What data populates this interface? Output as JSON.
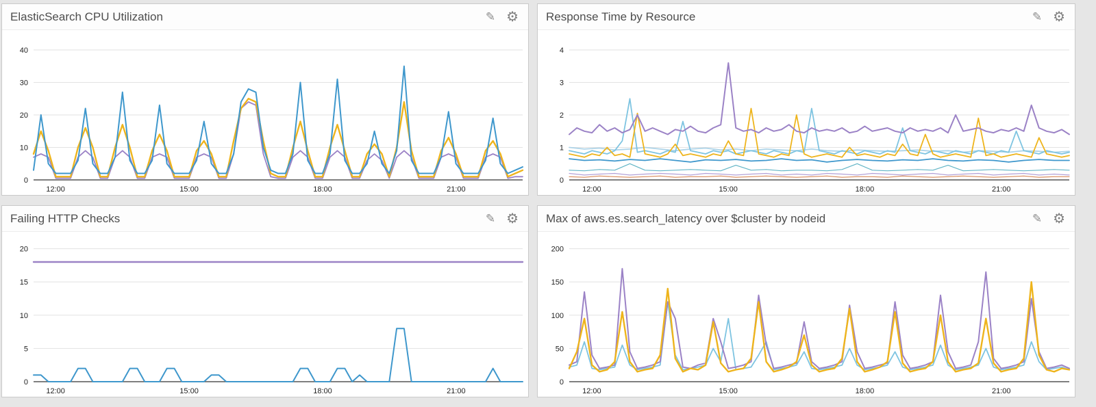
{
  "app": {
    "background": "#e6e6e6",
    "panel_background": "#ffffff",
    "title_color": "#4d4d4d",
    "grid_color": "#e2e2e2",
    "axis_color": "#333333",
    "tick_text_color": "#222222"
  },
  "icons": {
    "edit_glyph": "✎",
    "settings_glyph": "⚙"
  },
  "colors": {
    "blue": "#3e97cc",
    "yellow": "#eeb41c",
    "purple": "#9b82c6",
    "sky": "#7ec4e1",
    "pale_blue": "#aed4e8",
    "orange": "#d98a5a",
    "teal": "#62b5c6",
    "lavender": "#b3a0d6"
  },
  "chart_data": [
    {
      "type": "line",
      "title": "ElasticSearch CPU Utilization",
      "xlabel": "",
      "ylabel": "",
      "x_range": [
        "11:30",
        "22:30"
      ],
      "xticks": [
        {
          "label": "12:00",
          "pos": 0.045
        },
        {
          "label": "15:00",
          "pos": 0.318
        },
        {
          "label": "18:00",
          "pos": 0.591
        },
        {
          "label": "21:00",
          "pos": 0.864
        }
      ],
      "yticks": [
        0,
        10,
        20,
        30,
        40
      ],
      "ylim": [
        0,
        44
      ],
      "grid": "horizontal",
      "legend": "none",
      "series": [
        {
          "name": "cpu-purple",
          "color": "#9b82c6",
          "width": 1.8,
          "values": [
            7,
            8,
            7,
            0.5,
            0.5,
            0.5,
            7,
            9,
            7,
            0.5,
            0.5,
            7,
            9,
            7,
            0.5,
            0.5,
            7,
            8,
            7,
            0.5,
            0.5,
            0.5,
            7,
            8,
            7,
            0.5,
            0.5,
            8,
            22,
            24,
            23,
            8,
            1,
            0.5,
            0.5,
            7,
            9,
            7,
            0.5,
            0.5,
            7,
            9,
            7,
            0.5,
            0.5,
            6,
            8,
            6,
            0.5,
            7,
            9,
            7,
            0.5,
            0.5,
            0.5,
            7,
            8,
            7,
            0.5,
            0.5,
            0.5,
            7,
            8,
            7,
            0.5,
            1,
            1
          ]
        },
        {
          "name": "cpu-yellow",
          "color": "#eeb41c",
          "width": 2.4,
          "values": [
            8,
            15,
            9,
            1,
            1,
            1,
            10,
            16,
            10,
            1,
            1,
            10,
            17,
            10,
            1,
            1,
            9,
            14,
            9,
            1,
            1,
            1,
            9,
            12,
            8,
            1,
            1,
            12,
            22,
            25,
            24,
            12,
            2,
            1,
            1,
            10,
            18,
            9,
            1,
            1,
            10,
            17,
            9,
            1,
            1,
            8,
            11,
            8,
            1,
            10,
            24,
            9,
            1,
            1,
            1,
            9,
            13,
            8,
            1,
            1,
            1,
            9,
            12,
            8,
            1,
            2,
            3
          ]
        },
        {
          "name": "cpu-blue",
          "color": "#3e97cc",
          "width": 2,
          "values": [
            3,
            20,
            5,
            2,
            2,
            2,
            6,
            22,
            5,
            2,
            2,
            7,
            27,
            6,
            2,
            2,
            6,
            23,
            5,
            2,
            2,
            2,
            6,
            18,
            5,
            2,
            2,
            8,
            24,
            28,
            27,
            10,
            3,
            2,
            2,
            8,
            30,
            6,
            2,
            2,
            8,
            31,
            6,
            2,
            2,
            5,
            15,
            5,
            2,
            9,
            35,
            6,
            2,
            2,
            2,
            7,
            21,
            5,
            2,
            2,
            2,
            6,
            19,
            5,
            2,
            3,
            4
          ]
        }
      ]
    },
    {
      "type": "line",
      "title": "Response Time by Resource",
      "xlabel": "",
      "ylabel": "",
      "x_range": [
        "11:30",
        "22:30"
      ],
      "xticks": [
        {
          "label": "12:00",
          "pos": 0.045
        },
        {
          "label": "15:00",
          "pos": 0.318
        },
        {
          "label": "18:00",
          "pos": 0.591
        },
        {
          "label": "21:00",
          "pos": 0.864
        }
      ],
      "yticks": [
        0,
        1,
        2,
        3,
        4
      ],
      "ylim": [
        0,
        4.4
      ],
      "grid": "horizontal",
      "legend": "none",
      "series": [
        {
          "name": "rt-low-orange",
          "color": "#d98a5a",
          "width": 1.2,
          "values": [
            0.1,
            0.08,
            0.12,
            0.1,
            0.08,
            0.1,
            0.12,
            0.08,
            0.1,
            0.1,
            0.12,
            0.08,
            0.1,
            0.12,
            0.1,
            0.08,
            0.1,
            0.12,
            0.08,
            0.1,
            0.1,
            0.08,
            0.12,
            0.1,
            0.08,
            0.1,
            0.12,
            0.1,
            0.08,
            0.1,
            0.12,
            0.08,
            0.1,
            0.1
          ]
        },
        {
          "name": "rt-low-lavender",
          "color": "#b3a0d6",
          "width": 1.2,
          "values": [
            0.2,
            0.15,
            0.18,
            0.2,
            0.15,
            0.18,
            0.2,
            0.18,
            0.15,
            0.2,
            0.18,
            0.15,
            0.18,
            0.2,
            0.15,
            0.18,
            0.15,
            0.2,
            0.18,
            0.15,
            0.2,
            0.18,
            0.15,
            0.18,
            0.2,
            0.15,
            0.18,
            0.2,
            0.15,
            0.18,
            0.2,
            0.15,
            0.18,
            0.15
          ]
        },
        {
          "name": "rt-low-teal",
          "color": "#62b5c6",
          "width": 1.2,
          "values": [
            0.3,
            0.28,
            0.32,
            0.3,
            0.5,
            0.3,
            0.28,
            0.3,
            0.32,
            0.3,
            0.28,
            0.45,
            0.3,
            0.32,
            0.28,
            0.3,
            0.3,
            0.28,
            0.32,
            0.5,
            0.3,
            0.28,
            0.3,
            0.32,
            0.3,
            0.45,
            0.28,
            0.3,
            0.32,
            0.3,
            0.28,
            0.3,
            0.32,
            0.3
          ]
        },
        {
          "name": "rt-pale-blue",
          "color": "#aed4e8",
          "width": 1.8,
          "values": [
            1.0,
            0.95,
            0.98,
            0.92,
            0.95,
            1.0,
            0.95,
            0.9,
            0.95,
            0.98,
            0.92,
            0.95,
            0.9,
            0.95,
            0.92,
            0.9,
            0.95,
            0.9,
            0.88,
            0.92,
            0.9,
            0.88,
            0.9,
            0.92,
            0.88,
            0.9,
            0.85,
            0.9,
            0.88,
            0.85,
            0.9,
            0.88,
            0.85,
            0.88
          ]
        },
        {
          "name": "rt-steady-blue",
          "color": "#3e97cc",
          "width": 1.8,
          "values": [
            0.65,
            0.6,
            0.62,
            0.58,
            0.63,
            0.6,
            0.65,
            0.6,
            0.55,
            0.62,
            0.6,
            0.63,
            0.58,
            0.6,
            0.65,
            0.6,
            0.62,
            0.55,
            0.6,
            0.63,
            0.6,
            0.58,
            0.62,
            0.6,
            0.65,
            0.6,
            0.58,
            0.62,
            0.6,
            0.55,
            0.6,
            0.63,
            0.6,
            0.6
          ]
        },
        {
          "name": "rt-sky-blue",
          "color": "#7ec4e1",
          "width": 1.8,
          "values": [
            0.9,
            0.85,
            0.8,
            0.9,
            0.85,
            0.8,
            0.9,
            1.2,
            2.5,
            0.85,
            0.9,
            0.85,
            0.8,
            0.9,
            0.85,
            1.8,
            0.9,
            0.85,
            0.8,
            0.9,
            0.85,
            0.9,
            0.8,
            0.85,
            0.9,
            0.85,
            0.8,
            0.9,
            0.85,
            0.8,
            0.9,
            0.85,
            2.2,
            0.9,
            0.85,
            0.8,
            0.9,
            0.85,
            0.8,
            0.9,
            0.85,
            0.8,
            0.9,
            0.85,
            1.6,
            0.9,
            0.85,
            0.8,
            0.9,
            0.85,
            0.8,
            0.9,
            0.85,
            0.8,
            0.9,
            0.85,
            0.8,
            0.9,
            0.85,
            1.5,
            0.9,
            0.85,
            0.8,
            0.9,
            0.85,
            0.8,
            0.85
          ]
        },
        {
          "name": "rt-yellow",
          "color": "#eeb41c",
          "width": 1.8,
          "values": [
            0.8,
            0.75,
            0.7,
            0.8,
            0.75,
            1.0,
            0.75,
            0.8,
            0.7,
            2.05,
            0.8,
            0.75,
            0.7,
            0.8,
            1.1,
            0.75,
            0.8,
            0.75,
            0.7,
            0.8,
            0.75,
            1.2,
            0.8,
            0.75,
            2.2,
            0.8,
            0.75,
            0.7,
            0.8,
            0.75,
            2.0,
            0.8,
            0.7,
            0.75,
            0.8,
            0.75,
            0.7,
            1.0,
            0.75,
            0.8,
            0.75,
            0.7,
            0.8,
            0.75,
            1.1,
            0.8,
            0.75,
            1.4,
            0.8,
            0.7,
            0.75,
            0.8,
            0.75,
            0.7,
            1.9,
            0.75,
            0.8,
            0.7,
            0.75,
            0.8,
            0.75,
            0.7,
            1.3,
            0.8,
            0.75,
            0.7,
            0.75
          ]
        },
        {
          "name": "rt-purple",
          "color": "#9b82c6",
          "width": 2,
          "values": [
            1.4,
            1.6,
            1.5,
            1.45,
            1.7,
            1.5,
            1.6,
            1.45,
            1.55,
            2.0,
            1.5,
            1.6,
            1.5,
            1.4,
            1.55,
            1.5,
            1.65,
            1.5,
            1.45,
            1.6,
            1.7,
            3.6,
            1.6,
            1.5,
            1.55,
            1.45,
            1.6,
            1.5,
            1.55,
            1.7,
            1.5,
            1.45,
            1.6,
            1.5,
            1.55,
            1.5,
            1.6,
            1.45,
            1.5,
            1.65,
            1.5,
            1.55,
            1.6,
            1.5,
            1.45,
            1.6,
            1.5,
            1.55,
            1.5,
            1.6,
            1.45,
            2.0,
            1.5,
            1.55,
            1.6,
            1.5,
            1.45,
            1.55,
            1.5,
            1.6,
            1.5,
            2.3,
            1.6,
            1.5,
            1.45,
            1.55,
            1.4
          ]
        }
      ]
    },
    {
      "type": "line",
      "title": "Failing HTTP Checks",
      "xlabel": "",
      "ylabel": "",
      "x_range": [
        "11:30",
        "22:30"
      ],
      "xticks": [
        {
          "label": "12:00",
          "pos": 0.045
        },
        {
          "label": "15:00",
          "pos": 0.318
        },
        {
          "label": "18:00",
          "pos": 0.591
        },
        {
          "label": "21:00",
          "pos": 0.864
        }
      ],
      "yticks": [
        0,
        5,
        10,
        15,
        20
      ],
      "ylim": [
        0,
        21.5
      ],
      "grid": "horizontal",
      "legend": "none",
      "series": [
        {
          "name": "checks-blue",
          "color": "#3e97cc",
          "width": 2,
          "values": [
            1,
            1,
            0,
            0,
            0,
            0,
            2,
            2,
            0,
            0,
            0,
            0,
            0,
            2,
            2,
            0,
            0,
            0,
            2,
            2,
            0,
            0,
            0,
            0,
            1,
            1,
            0,
            0,
            0,
            0,
            0,
            0,
            0,
            0,
            0,
            0,
            2,
            2,
            0,
            0,
            0,
            2,
            2,
            0,
            1,
            0,
            0,
            0,
            0,
            8,
            8,
            0,
            0,
            0,
            0,
            0,
            0,
            0,
            0,
            0,
            0,
            0,
            2,
            0,
            0,
            0,
            0
          ]
        },
        {
          "name": "checks-purple",
          "color": "#9b82c6",
          "width": 2.4,
          "values": [
            18,
            18,
            18,
            18,
            18,
            18,
            18,
            18,
            18,
            18
          ]
        }
      ]
    },
    {
      "type": "line",
      "title": "Max of aws.es.search_latency over $cluster by nodeid",
      "xlabel": "",
      "ylabel": "",
      "x_range": [
        "11:30",
        "22:30"
      ],
      "xticks": [
        {
          "label": "12:00",
          "pos": 0.045
        },
        {
          "label": "15:00",
          "pos": 0.318
        },
        {
          "label": "18:00",
          "pos": 0.591
        },
        {
          "label": "21:00",
          "pos": 0.864
        }
      ],
      "yticks": [
        0,
        50,
        100,
        150,
        200
      ],
      "ylim": [
        0,
        215
      ],
      "grid": "horizontal",
      "legend": "none",
      "series": [
        {
          "name": "latency-sky",
          "color": "#7ec4e1",
          "width": 1.8,
          "values": [
            22,
            25,
            60,
            20,
            18,
            20,
            22,
            55,
            25,
            18,
            20,
            22,
            25,
            120,
            40,
            18,
            20,
            22,
            25,
            50,
            30,
            95,
            18,
            20,
            22,
            40,
            60,
            18,
            20,
            22,
            25,
            45,
            20,
            18,
            20,
            22,
            25,
            50,
            25,
            18,
            20,
            22,
            25,
            45,
            22,
            18,
            20,
            22,
            25,
            55,
            25,
            18,
            20,
            22,
            25,
            50,
            22,
            18,
            20,
            22,
            25,
            60,
            30,
            18,
            20,
            22,
            18
          ]
        },
        {
          "name": "latency-purple",
          "color": "#9b82c6",
          "width": 2,
          "values": [
            25,
            30,
            135,
            40,
            20,
            22,
            25,
            170,
            45,
            20,
            22,
            25,
            30,
            120,
            95,
            22,
            20,
            25,
            28,
            95,
            60,
            20,
            22,
            25,
            30,
            130,
            55,
            20,
            22,
            25,
            28,
            90,
            30,
            20,
            22,
            25,
            30,
            115,
            45,
            20,
            22,
            25,
            28,
            120,
            40,
            20,
            22,
            25,
            30,
            130,
            45,
            20,
            22,
            25,
            60,
            165,
            35,
            20,
            22,
            25,
            30,
            125,
            45,
            20,
            22,
            25,
            20
          ]
        },
        {
          "name": "latency-yellow",
          "color": "#eeb41c",
          "width": 2.4,
          "values": [
            20,
            45,
            95,
            25,
            15,
            18,
            30,
            105,
            30,
            15,
            18,
            20,
            40,
            140,
            35,
            15,
            20,
            18,
            25,
            90,
            28,
            15,
            18,
            20,
            35,
            120,
            30,
            15,
            18,
            22,
            30,
            70,
            25,
            15,
            18,
            20,
            35,
            110,
            30,
            15,
            18,
            22,
            30,
            105,
            28,
            15,
            18,
            20,
            30,
            100,
            30,
            15,
            18,
            20,
            28,
            95,
            28,
            15,
            18,
            20,
            35,
            150,
            40,
            18,
            15,
            20,
            18
          ]
        }
      ]
    }
  ]
}
